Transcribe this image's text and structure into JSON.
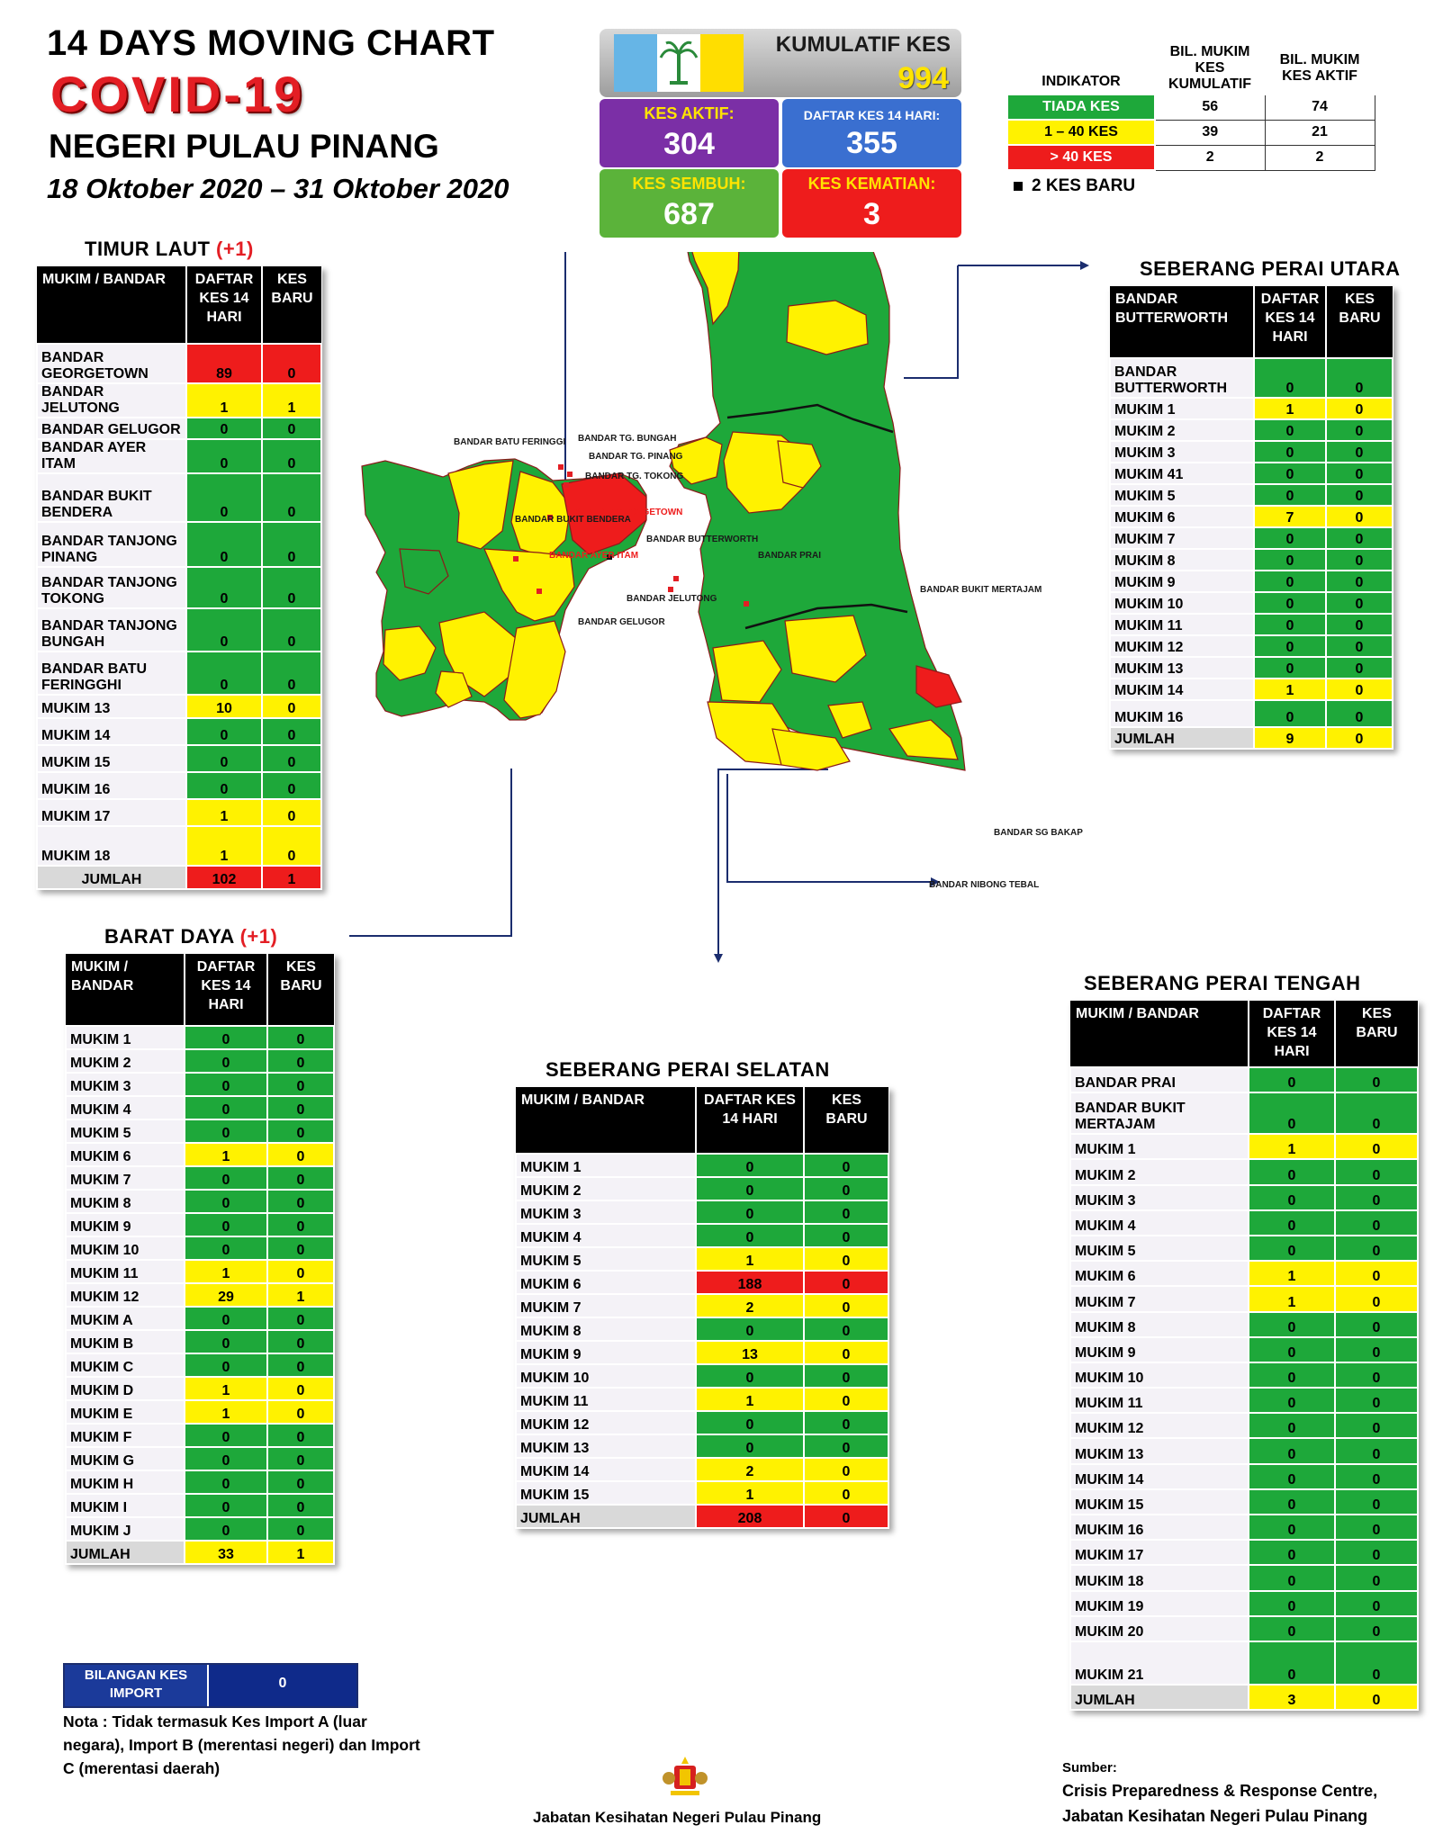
{
  "header": {
    "title_line1": "14  DAYS MOVING CHART",
    "title_line2": "COVID-19",
    "title_line3": "NEGERI PULAU PINANG",
    "date_range": "18 Oktober 2020 – 31 Oktober 2020"
  },
  "kpi": {
    "kumulatif_label": "KUMULATIF KES",
    "kumulatif_value": "994",
    "aktif_label": "KES AKTIF:",
    "aktif_value": "304",
    "daftar_label": "DAFTAR KES 14 HARI:",
    "daftar_value": "355",
    "sembuh_label": "KES SEMBUH:",
    "sembuh_value": "687",
    "kematian_label": "KES KEMATIAN:",
    "kematian_value": "3"
  },
  "legend": {
    "indikator": "INDIKATOR",
    "col1": "BIL. MUKIM KES KUMULATIF",
    "col2": "BIL. MUKIM KES AKTIF",
    "rows": [
      {
        "label": "TIADA KES",
        "kumulatif": "56",
        "aktif": "74",
        "color": "#1ea83a"
      },
      {
        "label": "1 – 40 KES",
        "kumulatif": "39",
        "aktif": "21",
        "color": "#fff200"
      },
      {
        "label": "> 40 KES",
        "kumulatif": "2",
        "aktif": "2",
        "color": "#ee1c1c"
      }
    ],
    "new_case_note": "2 KES BARU"
  },
  "timur_laut": {
    "title": "TIMUR LAUT",
    "plus": "(+1)",
    "head": [
      "MUKIM / BANDAR",
      "DAFTAR KES 14 HARI",
      "KES BARU"
    ],
    "rows": [
      {
        "n": "BANDAR GEORGETOWN",
        "d": "89",
        "b": "0",
        "dc": "r",
        "bc": "r",
        "h": 44
      },
      {
        "n": "BANDAR JELUTONG",
        "d": "1",
        "b": "1",
        "dc": "y",
        "bc": "y",
        "h": 24
      },
      {
        "n": "BANDAR GELUGOR",
        "d": "0",
        "b": "0",
        "dc": "g",
        "bc": "g",
        "h": 24
      },
      {
        "n": "BANDAR AYER ITAM",
        "d": "0",
        "b": "0",
        "dc": "g",
        "bc": "g",
        "h": 22
      },
      {
        "n": "BANDAR BUKIT BENDERA",
        "d": "0",
        "b": "0",
        "dc": "g",
        "bc": "g",
        "h": 54
      },
      {
        "n": "BANDAR TANJONG PINANG",
        "d": "0",
        "b": "0",
        "dc": "g",
        "bc": "g",
        "h": 50
      },
      {
        "n": "BANDAR TANJONG TOKONG",
        "d": "0",
        "b": "0",
        "dc": "g",
        "bc": "g",
        "h": 46
      },
      {
        "n": "BANDAR TANJONG BUNGAH",
        "d": "0",
        "b": "0",
        "dc": "g",
        "bc": "g",
        "h": 48
      },
      {
        "n": "BANDAR BATU FERINGGHI",
        "d": "0",
        "b": "0",
        "dc": "g",
        "bc": "g",
        "h": 48
      },
      {
        "n": "MUKIM 13",
        "d": "10",
        "b": "0",
        "dc": "y",
        "bc": "y",
        "h": 26
      },
      {
        "n": "MUKIM 14",
        "d": "0",
        "b": "0",
        "dc": "g",
        "bc": "g",
        "h": 30
      },
      {
        "n": "MUKIM 15",
        "d": "0",
        "b": "0",
        "dc": "g",
        "bc": "g",
        "h": 30
      },
      {
        "n": "MUKIM 16",
        "d": "0",
        "b": "0",
        "dc": "g",
        "bc": "g",
        "h": 30
      },
      {
        "n": "MUKIM 17",
        "d": "1",
        "b": "0",
        "dc": "y",
        "bc": "y",
        "h": 30
      },
      {
        "n": "MUKIM 18",
        "d": "1",
        "b": "0",
        "dc": "y",
        "bc": "y",
        "h": 44
      }
    ],
    "total": {
      "n": "JUMLAH",
      "d": "102",
      "b": "1",
      "dc": "r",
      "bc": "r",
      "h": 26
    }
  },
  "barat_daya": {
    "title": "BARAT DAYA",
    "plus": "(+1)",
    "head": [
      "MUKIM / BANDAR",
      "DAFTAR KES 14 HARI",
      "KES BARU"
    ],
    "rows": [
      {
        "n": "MUKIM 1",
        "d": "0",
        "b": "0",
        "dc": "g",
        "bc": "g"
      },
      {
        "n": "MUKIM 2",
        "d": "0",
        "b": "0",
        "dc": "g",
        "bc": "g"
      },
      {
        "n": "MUKIM 3",
        "d": "0",
        "b": "0",
        "dc": "g",
        "bc": "g"
      },
      {
        "n": "MUKIM 4",
        "d": "0",
        "b": "0",
        "dc": "g",
        "bc": "g"
      },
      {
        "n": "MUKIM 5",
        "d": "0",
        "b": "0",
        "dc": "g",
        "bc": "g"
      },
      {
        "n": "MUKIM 6",
        "d": "1",
        "b": "0",
        "dc": "y",
        "bc": "y"
      },
      {
        "n": "MUKIM 7",
        "d": "0",
        "b": "0",
        "dc": "g",
        "bc": "g"
      },
      {
        "n": "MUKIM 8",
        "d": "0",
        "b": "0",
        "dc": "g",
        "bc": "g"
      },
      {
        "n": "MUKIM 9",
        "d": "0",
        "b": "0",
        "dc": "g",
        "bc": "g"
      },
      {
        "n": "MUKIM 10",
        "d": "0",
        "b": "0",
        "dc": "g",
        "bc": "g"
      },
      {
        "n": "MUKIM 11",
        "d": "1",
        "b": "0",
        "dc": "y",
        "bc": "y"
      },
      {
        "n": "MUKIM 12",
        "d": "29",
        "b": "1",
        "dc": "y",
        "bc": "y"
      },
      {
        "n": "MUKIM A",
        "d": "0",
        "b": "0",
        "dc": "g",
        "bc": "g"
      },
      {
        "n": "MUKIM B",
        "d": "0",
        "b": "0",
        "dc": "g",
        "bc": "g"
      },
      {
        "n": "MUKIM C",
        "d": "0",
        "b": "0",
        "dc": "g",
        "bc": "g"
      },
      {
        "n": "MUKIM D",
        "d": "1",
        "b": "0",
        "dc": "y",
        "bc": "y"
      },
      {
        "n": "MUKIM E",
        "d": "1",
        "b": "0",
        "dc": "y",
        "bc": "y"
      },
      {
        "n": "MUKIM F",
        "d": "0",
        "b": "0",
        "dc": "g",
        "bc": "g"
      },
      {
        "n": "MUKIM G",
        "d": "0",
        "b": "0",
        "dc": "g",
        "bc": "g"
      },
      {
        "n": "MUKIM H",
        "d": "0",
        "b": "0",
        "dc": "g",
        "bc": "g"
      },
      {
        "n": "MUKIM I",
        "d": "0",
        "b": "0",
        "dc": "g",
        "bc": "g"
      },
      {
        "n": "MUKIM J",
        "d": "0",
        "b": "0",
        "dc": "g",
        "bc": "g"
      }
    ],
    "total": {
      "n": "JUMLAH",
      "d": "33",
      "b": "1",
      "dc": "y",
      "bc": "y"
    }
  },
  "seberang_perai_utara": {
    "title": "SEBERANG PERAI UTARA",
    "head": [
      "BANDAR BUTTERWORTH",
      "DAFTAR KES 14 HARI",
      "KES BARU"
    ],
    "rows": [
      {
        "n": "BANDAR BUTTERWORTH",
        "d": "0",
        "b": "0",
        "dc": "g",
        "bc": "g",
        "h": 44
      },
      {
        "n": "MUKIM 1",
        "d": "1",
        "b": "0",
        "dc": "y",
        "bc": "y"
      },
      {
        "n": "MUKIM 2",
        "d": "0",
        "b": "0",
        "dc": "g",
        "bc": "g"
      },
      {
        "n": "MUKIM 3",
        "d": "0",
        "b": "0",
        "dc": "g",
        "bc": "g"
      },
      {
        "n": "MUKIM 41",
        "d": "0",
        "b": "0",
        "dc": "g",
        "bc": "g"
      },
      {
        "n": "MUKIM 5",
        "d": "0",
        "b": "0",
        "dc": "g",
        "bc": "g"
      },
      {
        "n": "MUKIM 6",
        "d": "7",
        "b": "0",
        "dc": "y",
        "bc": "y"
      },
      {
        "n": "MUKIM 7",
        "d": "0",
        "b": "0",
        "dc": "g",
        "bc": "g"
      },
      {
        "n": "MUKIM 8",
        "d": "0",
        "b": "0",
        "dc": "g",
        "bc": "g"
      },
      {
        "n": "MUKIM 9",
        "d": "0",
        "b": "0",
        "dc": "g",
        "bc": "g"
      },
      {
        "n": "MUKIM 10",
        "d": "0",
        "b": "0",
        "dc": "g",
        "bc": "g"
      },
      {
        "n": "MUKIM 11",
        "d": "0",
        "b": "0",
        "dc": "g",
        "bc": "g"
      },
      {
        "n": "MUKIM 12",
        "d": "0",
        "b": "0",
        "dc": "g",
        "bc": "g"
      },
      {
        "n": "MUKIM 13",
        "d": "0",
        "b": "0",
        "dc": "g",
        "bc": "g"
      },
      {
        "n": "MUKIM 14",
        "d": "1",
        "b": "0",
        "dc": "y",
        "bc": "y"
      },
      {
        "n": "MUKIM 16",
        "d": "0",
        "b": "0",
        "dc": "g",
        "bc": "g",
        "h": 30
      }
    ],
    "total": {
      "n": "JUMLAH",
      "d": "9",
      "b": "0",
      "dc": "y",
      "bc": "y"
    }
  },
  "seberang_perai_selatan": {
    "title": "SEBERANG PERAI SELATAN",
    "head": [
      "MUKIM / BANDAR",
      "DAFTAR KES 14 HARI",
      "KES BARU"
    ],
    "rows": [
      {
        "n": "MUKIM 1",
        "d": "0",
        "b": "0",
        "dc": "g",
        "bc": "g"
      },
      {
        "n": "MUKIM 2",
        "d": "0",
        "b": "0",
        "dc": "g",
        "bc": "g"
      },
      {
        "n": "MUKIM 3",
        "d": "0",
        "b": "0",
        "dc": "g",
        "bc": "g"
      },
      {
        "n": "MUKIM 4",
        "d": "0",
        "b": "0",
        "dc": "g",
        "bc": "g"
      },
      {
        "n": "MUKIM 5",
        "d": "1",
        "b": "0",
        "dc": "y",
        "bc": "y"
      },
      {
        "n": "MUKIM 6",
        "d": "188",
        "b": "0",
        "dc": "r",
        "bc": "r"
      },
      {
        "n": "MUKIM 7",
        "d": "2",
        "b": "0",
        "dc": "y",
        "bc": "y"
      },
      {
        "n": "MUKIM 8",
        "d": "0",
        "b": "0",
        "dc": "g",
        "bc": "g"
      },
      {
        "n": "MUKIM 9",
        "d": "13",
        "b": "0",
        "dc": "y",
        "bc": "y"
      },
      {
        "n": "MUKIM 10",
        "d": "0",
        "b": "0",
        "dc": "g",
        "bc": "g"
      },
      {
        "n": "MUKIM 11",
        "d": "1",
        "b": "0",
        "dc": "y",
        "bc": "y"
      },
      {
        "n": "MUKIM 12",
        "d": "0",
        "b": "0",
        "dc": "g",
        "bc": "g"
      },
      {
        "n": "MUKIM 13",
        "d": "0",
        "b": "0",
        "dc": "g",
        "bc": "g"
      },
      {
        "n": "MUKIM 14",
        "d": "2",
        "b": "0",
        "dc": "y",
        "bc": "y"
      },
      {
        "n": "MUKIM 15",
        "d": "1",
        "b": "0",
        "dc": "y",
        "bc": "y"
      }
    ],
    "total": {
      "n": "JUMLAH",
      "d": "208",
      "b": "0",
      "dc": "r",
      "bc": "r"
    }
  },
  "seberang_perai_tengah": {
    "title": "SEBERANG PERAI TENGAH",
    "head": [
      "MUKIM / BANDAR",
      "DAFTAR KES 14 HARI",
      "KES BARU"
    ],
    "rows": [
      {
        "n": "BANDAR PRAI",
        "d": "0",
        "b": "0",
        "dc": "g",
        "bc": "g"
      },
      {
        "n": "BANDAR BUKIT MERTAJAM",
        "d": "0",
        "b": "0",
        "dc": "g",
        "bc": "g",
        "h": 46
      },
      {
        "n": "MUKIM 1",
        "d": "1",
        "b": "0",
        "dc": "y",
        "bc": "y"
      },
      {
        "n": "MUKIM 2",
        "d": "0",
        "b": "0",
        "dc": "g",
        "bc": "g"
      },
      {
        "n": "MUKIM 3",
        "d": "0",
        "b": "0",
        "dc": "g",
        "bc": "g"
      },
      {
        "n": "MUKIM 4",
        "d": "0",
        "b": "0",
        "dc": "g",
        "bc": "g"
      },
      {
        "n": "MUKIM 5",
        "d": "0",
        "b": "0",
        "dc": "g",
        "bc": "g"
      },
      {
        "n": "MUKIM 6",
        "d": "1",
        "b": "0",
        "dc": "y",
        "bc": "y"
      },
      {
        "n": "MUKIM 7",
        "d": "1",
        "b": "0",
        "dc": "y",
        "bc": "y"
      },
      {
        "n": "MUKIM 8",
        "d": "0",
        "b": "0",
        "dc": "g",
        "bc": "g"
      },
      {
        "n": "MUKIM 9",
        "d": "0",
        "b": "0",
        "dc": "g",
        "bc": "g"
      },
      {
        "n": "MUKIM 10",
        "d": "0",
        "b": "0",
        "dc": "g",
        "bc": "g"
      },
      {
        "n": "MUKIM 11",
        "d": "0",
        "b": "0",
        "dc": "g",
        "bc": "g"
      },
      {
        "n": "MUKIM 12",
        "d": "0",
        "b": "0",
        "dc": "g",
        "bc": "g"
      },
      {
        "n": "MUKIM 13",
        "d": "0",
        "b": "0",
        "dc": "g",
        "bc": "g"
      },
      {
        "n": "MUKIM 14",
        "d": "0",
        "b": "0",
        "dc": "g",
        "bc": "g"
      },
      {
        "n": "MUKIM 15",
        "d": "0",
        "b": "0",
        "dc": "g",
        "bc": "g"
      },
      {
        "n": "MUKIM 16",
        "d": "0",
        "b": "0",
        "dc": "g",
        "bc": "g"
      },
      {
        "n": "MUKIM 17",
        "d": "0",
        "b": "0",
        "dc": "g",
        "bc": "g"
      },
      {
        "n": "MUKIM 18",
        "d": "0",
        "b": "0",
        "dc": "g",
        "bc": "g"
      },
      {
        "n": "MUKIM 19",
        "d": "0",
        "b": "0",
        "dc": "g",
        "bc": "g"
      },
      {
        "n": "MUKIM 20",
        "d": "0",
        "b": "0",
        "dc": "g",
        "bc": "g"
      },
      {
        "n": "MUKIM 21",
        "d": "0",
        "b": "0",
        "dc": "g",
        "bc": "g",
        "h": 48
      }
    ],
    "total": {
      "n": "JUMLAH",
      "d": "3",
      "b": "0",
      "dc": "y",
      "bc": "y"
    }
  },
  "import": {
    "label": "BILANGAN KES IMPORT",
    "value": "0",
    "note": "Nota : Tidak termasuk Kes Import A (luar negara), Import B (merentasi negeri) dan Import C (merentasi daerah)"
  },
  "map_labels": {
    "batu_feringgi": "BANDAR BATU FERINGGI",
    "tg_bungah": "BANDAR TG. BUNGAH",
    "tg_pinang": "BANDAR TG. PINANG",
    "tg_tokong": "BANDAR TG.  TOKONG",
    "georgetown": "BANDAR GEORGETOWN",
    "ayer_itam": "BANDAR AYER ITAM",
    "jelutong": "BANDAR JELUTONG",
    "gelugor": "BANDAR GELUGOR",
    "bukit_bendera": "BANDAR BUKIT BENDERA",
    "butterworth": "BANDAR BUTTERWORTH",
    "prai": "BANDAR PRAI",
    "bukit_mertajam": "BANDAR BUKIT MERTAJAM",
    "sg_bakap": "BANDAR SG BAKAP",
    "nibong_tebal": "BANDAR NIBONG TEBAL"
  },
  "footer": {
    "center": "Jabatan Kesihatan Negeri Pulau Pinang",
    "sumber_label": "Sumber:",
    "sumber_line1": "Crisis Preparedness & Response Centre,",
    "sumber_line2": "Jabatan Kesihatan Negeri Pulau Pinang"
  },
  "colors": {
    "green": "#1ea83a",
    "yellow": "#fff200",
    "red": "#ee1c1c",
    "purple": "#7b2fa6",
    "blue": "#3a6fd0"
  }
}
